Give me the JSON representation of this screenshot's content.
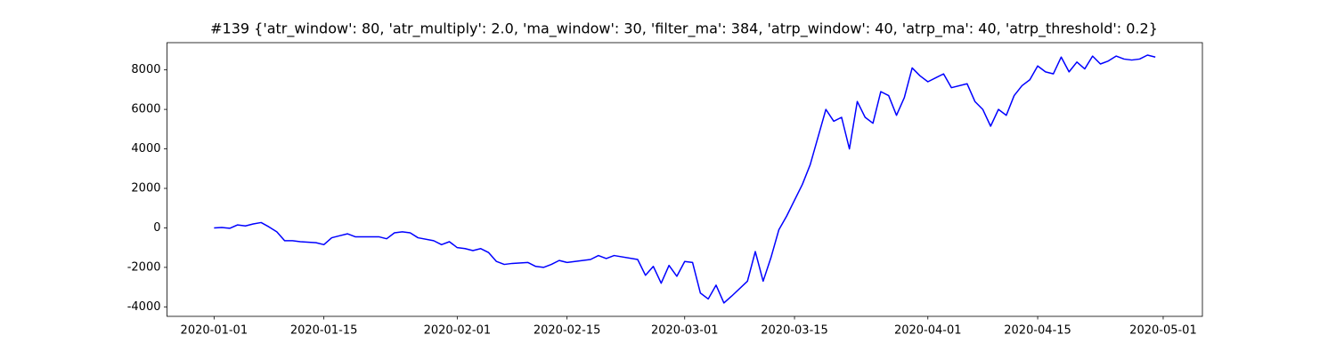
{
  "chart_data": {
    "type": "line",
    "title": "#139 {'atr_window': 80, 'atr_multiply': 2.0, 'ma_window': 30, 'filter_ma': 384, 'atrp_window': 40, 'atrp_ma': 40, 'atrp_threshold': 0.2}",
    "x": [
      "2020-01-01",
      "2020-01-02",
      "2020-01-03",
      "2020-01-04",
      "2020-01-05",
      "2020-01-06",
      "2020-01-07",
      "2020-01-08",
      "2020-01-09",
      "2020-01-10",
      "2020-01-11",
      "2020-01-12",
      "2020-01-14",
      "2020-01-15",
      "2020-01-16",
      "2020-01-17",
      "2020-01-18",
      "2020-01-19",
      "2020-01-22",
      "2020-01-23",
      "2020-01-24",
      "2020-01-25",
      "2020-01-26",
      "2020-01-27",
      "2020-01-29",
      "2020-01-30",
      "2020-01-31",
      "2020-02-01",
      "2020-02-02",
      "2020-02-03",
      "2020-02-04",
      "2020-02-05",
      "2020-02-06",
      "2020-02-07",
      "2020-02-08",
      "2020-02-10",
      "2020-02-11",
      "2020-02-12",
      "2020-02-13",
      "2020-02-14",
      "2020-02-15",
      "2020-02-18",
      "2020-02-19",
      "2020-02-20",
      "2020-02-21",
      "2020-02-24",
      "2020-02-25",
      "2020-02-26",
      "2020-02-27",
      "2020-02-28",
      "2020-02-29",
      "2020-03-01",
      "2020-03-02",
      "2020-03-03",
      "2020-03-04",
      "2020-03-05",
      "2020-03-06",
      "2020-03-07",
      "2020-03-09",
      "2020-03-10",
      "2020-03-11",
      "2020-03-12",
      "2020-03-13",
      "2020-03-14",
      "2020-03-16",
      "2020-03-17",
      "2020-03-18",
      "2020-03-19",
      "2020-03-20",
      "2020-03-21",
      "2020-03-22",
      "2020-03-23",
      "2020-03-24",
      "2020-03-25",
      "2020-03-26",
      "2020-03-27",
      "2020-03-28",
      "2020-03-29",
      "2020-03-30",
      "2020-03-31",
      "2020-04-01",
      "2020-04-02",
      "2020-04-03",
      "2020-04-04",
      "2020-04-06",
      "2020-04-07",
      "2020-04-08",
      "2020-04-09",
      "2020-04-10",
      "2020-04-11",
      "2020-04-12",
      "2020-04-13",
      "2020-04-14",
      "2020-04-15",
      "2020-04-16",
      "2020-04-17",
      "2020-04-18",
      "2020-04-19",
      "2020-04-20",
      "2020-04-21",
      "2020-04-22",
      "2020-04-23",
      "2020-04-24",
      "2020-04-25",
      "2020-04-26",
      "2020-04-27",
      "2020-04-28",
      "2020-04-29",
      "2020-04-30"
    ],
    "series": [
      {
        "color": "#0000ff",
        "values": [
          0,
          20,
          -20,
          150,
          100,
          200,
          270,
          50,
          -200,
          -650,
          -650,
          -700,
          -750,
          -850,
          -500,
          -400,
          -300,
          -450,
          -450,
          -550,
          -250,
          -200,
          -250,
          -500,
          -650,
          -850,
          -700,
          -1000,
          -1050,
          -1150,
          -1050,
          -1250,
          -1700,
          -1850,
          -1800,
          -1750,
          -1950,
          -2000,
          -1850,
          -1650,
          -1750,
          -1600,
          -1400,
          -1550,
          -1400,
          -1600,
          -2400,
          -1950,
          -2800,
          -1900,
          -2450,
          -1700,
          -1750,
          -3300,
          -3600,
          -2900,
          -3800,
          -3450,
          -2700,
          -1200,
          -2700,
          -1500,
          -100,
          600,
          2200,
          3200,
          4600,
          6000,
          5400,
          5600,
          4000,
          6400,
          5600,
          5300,
          6900,
          6700,
          5700,
          6600,
          8100,
          7700,
          7400,
          7600,
          7800,
          7100,
          7300,
          6400,
          6000,
          5150,
          6000,
          5700,
          6700,
          7200,
          7500,
          8200,
          7900,
          7800,
          8650,
          7900,
          8400,
          8050,
          8700,
          8300,
          8450,
          8700,
          8550,
          8500,
          8550,
          8750,
          8650
        ]
      }
    ],
    "xlim": [
      "2019-12-26",
      "2020-05-06"
    ],
    "xticks": [
      "2020-01-01",
      "2020-01-15",
      "2020-02-01",
      "2020-02-15",
      "2020-03-01",
      "2020-03-15",
      "2020-04-01",
      "2020-04-15",
      "2020-05-01"
    ],
    "ylim": [
      -4480,
      9380
    ],
    "yticks": [
      -4000,
      -2000,
      0,
      2000,
      4000,
      6000,
      8000
    ],
    "grid": false
  }
}
